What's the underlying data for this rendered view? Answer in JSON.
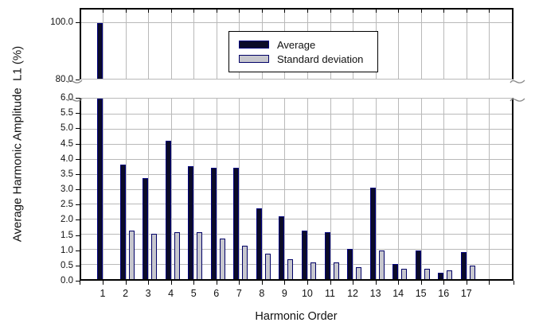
{
  "chart_data": {
    "type": "bar",
    "title": "",
    "xlabel": "Harmonic Order",
    "ylabel": "Average Harmonic Amplitude  L1 (%)",
    "categories": [
      1,
      2,
      3,
      4,
      5,
      6,
      7,
      8,
      9,
      10,
      11,
      12,
      13,
      14,
      15,
      16,
      17
    ],
    "series": [
      {
        "name": "Average",
        "color": "#0b0b28",
        "border_color": "#00007d",
        "values": [
          100,
          3.8,
          3.35,
          4.6,
          3.75,
          3.7,
          3.7,
          2.35,
          2.1,
          1.6,
          1.55,
          1.0,
          3.05,
          0.5,
          0.95,
          0.2,
          0.9
        ]
      },
      {
        "name": "Standard deviation",
        "color": "#c7c7ce",
        "border_color": "#000066",
        "values": [
          0,
          1.6,
          1.5,
          1.55,
          1.55,
          1.35,
          1.1,
          0.85,
          0.65,
          0.55,
          0.55,
          0.4,
          0.95,
          0.35,
          0.35,
          0.3,
          0.45
        ]
      }
    ],
    "y_axis": {
      "broken": true,
      "upper_panel": {
        "range": [
          80,
          105
        ],
        "tick_labels": [
          "100.0",
          "80.0"
        ]
      },
      "lower_panel": {
        "range": [
          0,
          6
        ],
        "tick_labels": [
          "6.0",
          "5.5",
          "5.0",
          "4.5",
          "4.0",
          "3.5",
          "3.0",
          "2.5",
          "2.0",
          "1.5",
          "1.0",
          "0.5",
          "0.0"
        ]
      }
    },
    "grid": true,
    "gridline_color": "#b9b9b9",
    "legend_position": "top-center-inside"
  }
}
